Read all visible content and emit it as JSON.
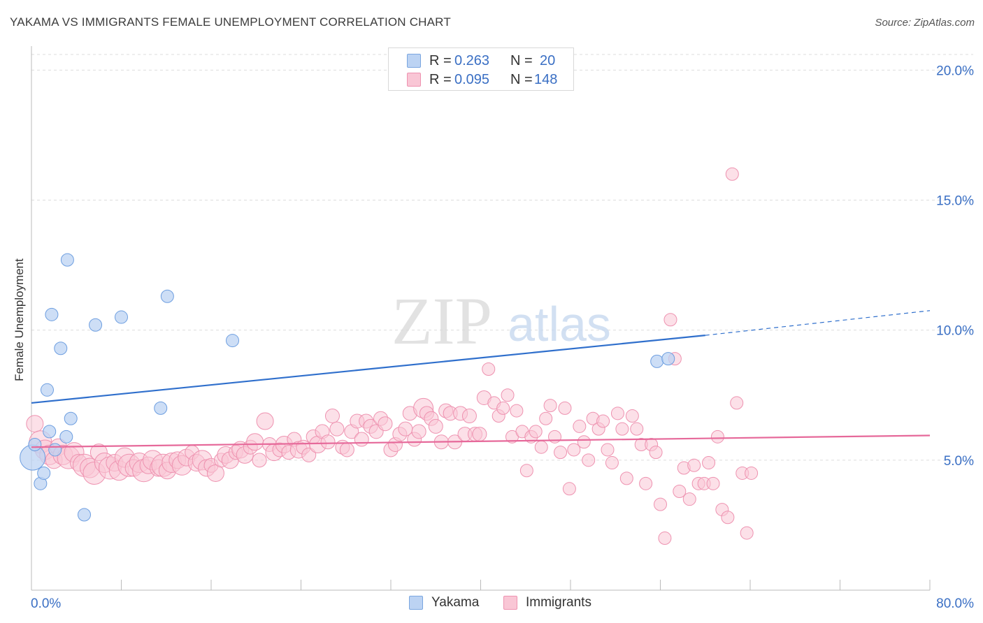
{
  "title": "YAKAMA VS IMMIGRANTS FEMALE UNEMPLOYMENT CORRELATION CHART",
  "source": "Source: ZipAtlas.com",
  "watermark": {
    "zip": "ZIP",
    "atlas": "atlas"
  },
  "legend": {
    "rows": [
      {
        "r_label": "R =",
        "r_value": "0.263",
        "n_label": "N =",
        "n_value": "20",
        "color": "#a9c8f0",
        "border": "#7aa6e0"
      },
      {
        "r_label": "R =",
        "r_value": "0.095",
        "n_label": "N =",
        "n_value": "148",
        "color": "#f8bfd0",
        "border": "#ee9ab5"
      }
    ]
  },
  "colors": {
    "yakama_fill": "#bcd3f3",
    "yakama_stroke": "#6d9ee0",
    "yakama_line": "#2f6fcc",
    "immig_fill": "#f9c6d5",
    "immig_stroke": "#ee92b0",
    "immig_line": "#e6699a",
    "tick_text": "#3a6fc4",
    "grid": "#dddddd"
  },
  "chart_data": {
    "type": "scatter",
    "title": "YAKAMA VS IMMIGRANTS FEMALE UNEMPLOYMENT CORRELATION CHART",
    "xlabel": "",
    "ylabel": "Female Unemployment",
    "xlim": [
      0,
      80
    ],
    "ylim": [
      0,
      20.6
    ],
    "x_tick_labels": [
      {
        "value": 0,
        "label": "0.0%"
      },
      {
        "value": 80,
        "label": "80.0%"
      }
    ],
    "y_tick_labels": [
      {
        "value": 5,
        "label": "5.0%"
      },
      {
        "value": 10,
        "label": "10.0%"
      },
      {
        "value": 15,
        "label": "15.0%"
      },
      {
        "value": 20,
        "label": "20.0%"
      }
    ],
    "grid": true,
    "legend_position": "top-center",
    "series": [
      {
        "name": "Yakama",
        "trend": {
          "x0": 0,
          "y0": 7.2,
          "x1": 60,
          "y1": 9.8,
          "dash_to_x": 80,
          "dash_to_y": 10.75
        },
        "points": [
          [
            0.1,
            5.1,
            18
          ],
          [
            0.3,
            5.6,
            9
          ],
          [
            0.8,
            4.1,
            9
          ],
          [
            1.1,
            4.5,
            9
          ],
          [
            1.4,
            7.7,
            9
          ],
          [
            1.6,
            6.1,
            9
          ],
          [
            1.8,
            10.6,
            9
          ],
          [
            2.1,
            5.4,
            9
          ],
          [
            2.6,
            9.3,
            9
          ],
          [
            3.2,
            12.7,
            9
          ],
          [
            3.1,
            5.9,
            9
          ],
          [
            3.5,
            6.6,
            9
          ],
          [
            4.7,
            2.9,
            9
          ],
          [
            5.7,
            10.2,
            9
          ],
          [
            8.0,
            10.5,
            9
          ],
          [
            11.5,
            7.0,
            9
          ],
          [
            12.1,
            11.3,
            9
          ],
          [
            17.9,
            9.6,
            9
          ],
          [
            55.7,
            8.8,
            9
          ],
          [
            56.7,
            8.9,
            9
          ]
        ]
      },
      {
        "name": "Immigrants",
        "trend": {
          "x0": 0,
          "y0": 5.5,
          "x1": 80,
          "y1": 5.95
        },
        "points": [
          [
            0.3,
            6.4,
            12
          ],
          [
            0.8,
            5.7,
            16
          ],
          [
            1.2,
            5.4,
            14
          ],
          [
            1.6,
            5.2,
            14
          ],
          [
            2.0,
            5.0,
            12
          ],
          [
            2.4,
            5.5,
            12
          ],
          [
            2.8,
            5.2,
            14
          ],
          [
            3.3,
            5.1,
            16
          ],
          [
            3.8,
            5.3,
            14
          ],
          [
            4.2,
            4.9,
            12
          ],
          [
            4.7,
            4.8,
            16
          ],
          [
            5.2,
            4.7,
            14
          ],
          [
            5.6,
            4.5,
            16
          ],
          [
            6.0,
            5.3,
            12
          ],
          [
            6.5,
            4.9,
            14
          ],
          [
            7.0,
            4.7,
            16
          ],
          [
            7.4,
            4.9,
            12
          ],
          [
            7.8,
            4.6,
            14
          ],
          [
            8.3,
            5.1,
            14
          ],
          [
            8.7,
            4.8,
            16
          ],
          [
            9.1,
            4.7,
            12
          ],
          [
            9.6,
            4.9,
            14
          ],
          [
            10.0,
            4.6,
            16
          ],
          [
            10.4,
            4.8,
            12
          ],
          [
            10.8,
            5.0,
            14
          ],
          [
            11.3,
            4.7,
            12
          ],
          [
            11.7,
            4.8,
            16
          ],
          [
            12.1,
            4.6,
            12
          ],
          [
            12.5,
            4.9,
            14
          ],
          [
            13.0,
            5.0,
            12
          ],
          [
            13.4,
            4.8,
            14
          ],
          [
            13.8,
            5.1,
            12
          ],
          [
            14.3,
            5.3,
            10
          ],
          [
            14.7,
            4.9,
            12
          ],
          [
            15.2,
            5.0,
            14
          ],
          [
            15.6,
            4.7,
            12
          ],
          [
            16.0,
            4.8,
            10
          ],
          [
            16.4,
            4.5,
            12
          ],
          [
            16.9,
            5.0,
            10
          ],
          [
            17.3,
            5.2,
            12
          ],
          [
            17.7,
            5.0,
            12
          ],
          [
            18.2,
            5.3,
            10
          ],
          [
            18.6,
            5.4,
            12
          ],
          [
            19.0,
            5.2,
            12
          ],
          [
            19.5,
            5.5,
            10
          ],
          [
            19.9,
            5.7,
            12
          ],
          [
            20.3,
            5.0,
            10
          ],
          [
            20.8,
            6.5,
            12
          ],
          [
            21.2,
            5.6,
            10
          ],
          [
            21.6,
            5.3,
            12
          ],
          [
            22.1,
            5.4,
            10
          ],
          [
            22.5,
            5.6,
            12
          ],
          [
            22.9,
            5.3,
            10
          ],
          [
            23.4,
            5.8,
            10
          ],
          [
            23.8,
            5.4,
            12
          ],
          [
            24.2,
            5.5,
            10
          ],
          [
            24.7,
            5.2,
            10
          ],
          [
            25.1,
            5.9,
            10
          ],
          [
            25.5,
            5.6,
            12
          ],
          [
            25.9,
            6.1,
            10
          ],
          [
            26.4,
            5.7,
            10
          ],
          [
            26.8,
            6.7,
            10
          ],
          [
            27.2,
            6.2,
            10
          ],
          [
            27.7,
            5.5,
            10
          ],
          [
            28.1,
            5.4,
            10
          ],
          [
            28.5,
            6.1,
            10
          ],
          [
            29.0,
            6.5,
            10
          ],
          [
            29.4,
            5.8,
            10
          ],
          [
            29.8,
            6.5,
            10
          ],
          [
            30.2,
            6.3,
            10
          ],
          [
            30.7,
            6.1,
            10
          ],
          [
            31.1,
            6.6,
            10
          ],
          [
            31.5,
            6.4,
            10
          ],
          [
            32.0,
            5.4,
            10
          ],
          [
            32.4,
            5.6,
            10
          ],
          [
            32.8,
            6.0,
            10
          ],
          [
            33.3,
            6.2,
            10
          ],
          [
            33.7,
            6.8,
            10
          ],
          [
            34.1,
            5.8,
            10
          ],
          [
            34.5,
            6.1,
            10
          ],
          [
            34.9,
            7.0,
            14
          ],
          [
            35.2,
            6.8,
            10
          ],
          [
            35.6,
            6.6,
            10
          ],
          [
            36.0,
            6.3,
            10
          ],
          [
            36.5,
            5.7,
            10
          ],
          [
            36.9,
            6.9,
            10
          ],
          [
            37.3,
            6.8,
            10
          ],
          [
            37.7,
            5.7,
            10
          ],
          [
            38.2,
            6.8,
            10
          ],
          [
            38.6,
            6.0,
            10
          ],
          [
            39.0,
            6.7,
            10
          ],
          [
            39.5,
            6.0,
            10
          ],
          [
            39.9,
            6.0,
            10
          ],
          [
            40.3,
            7.4,
            10
          ],
          [
            40.7,
            8.5,
            9
          ],
          [
            41.2,
            7.2,
            9
          ],
          [
            41.6,
            6.7,
            9
          ],
          [
            42.0,
            7.0,
            9
          ],
          [
            42.4,
            7.5,
            9
          ],
          [
            42.8,
            5.9,
            9
          ],
          [
            43.2,
            6.9,
            9
          ],
          [
            43.7,
            6.1,
            9
          ],
          [
            44.1,
            4.6,
            9
          ],
          [
            44.5,
            5.9,
            9
          ],
          [
            44.9,
            6.1,
            9
          ],
          [
            45.4,
            5.5,
            9
          ],
          [
            45.8,
            6.6,
            9
          ],
          [
            46.2,
            7.1,
            9
          ],
          [
            46.6,
            5.9,
            9
          ],
          [
            47.1,
            5.3,
            9
          ],
          [
            47.5,
            7.0,
            9
          ],
          [
            47.9,
            3.9,
            9
          ],
          [
            48.3,
            5.4,
            9
          ],
          [
            48.8,
            6.3,
            9
          ],
          [
            49.2,
            5.7,
            9
          ],
          [
            49.6,
            5.0,
            9
          ],
          [
            50.0,
            6.6,
            9
          ],
          [
            50.5,
            6.2,
            9
          ],
          [
            50.9,
            6.5,
            9
          ],
          [
            51.3,
            5.4,
            9
          ],
          [
            51.7,
            4.9,
            9
          ],
          [
            52.2,
            6.8,
            9
          ],
          [
            52.6,
            6.2,
            9
          ],
          [
            53.0,
            4.3,
            9
          ],
          [
            53.5,
            6.7,
            9
          ],
          [
            53.9,
            6.2,
            9
          ],
          [
            54.3,
            5.6,
            9
          ],
          [
            54.7,
            4.1,
            9
          ],
          [
            55.2,
            5.6,
            9
          ],
          [
            55.6,
            5.3,
            9
          ],
          [
            56.0,
            3.3,
            9
          ],
          [
            56.4,
            2.0,
            9
          ],
          [
            56.9,
            10.4,
            9
          ],
          [
            57.3,
            8.9,
            9
          ],
          [
            57.7,
            3.8,
            9
          ],
          [
            58.1,
            4.7,
            9
          ],
          [
            58.6,
            3.5,
            9
          ],
          [
            59.0,
            4.8,
            9
          ],
          [
            59.4,
            4.1,
            9
          ],
          [
            59.9,
            4.1,
            9
          ],
          [
            60.3,
            4.9,
            9
          ],
          [
            60.7,
            4.1,
            9
          ],
          [
            61.1,
            5.9,
            9
          ],
          [
            61.5,
            3.1,
            9
          ],
          [
            62.0,
            2.8,
            9
          ],
          [
            62.4,
            16.0,
            9
          ],
          [
            62.8,
            7.2,
            9
          ],
          [
            63.3,
            4.5,
            9
          ],
          [
            63.7,
            2.2,
            9
          ],
          [
            64.1,
            4.5,
            9
          ]
        ]
      }
    ]
  },
  "bottom_legend": [
    {
      "label": "Yakama",
      "color": "#bcd3f3",
      "border": "#7aa6e0"
    },
    {
      "label": "Immigrants",
      "color": "#f9c6d5",
      "border": "#ee92b0"
    }
  ]
}
